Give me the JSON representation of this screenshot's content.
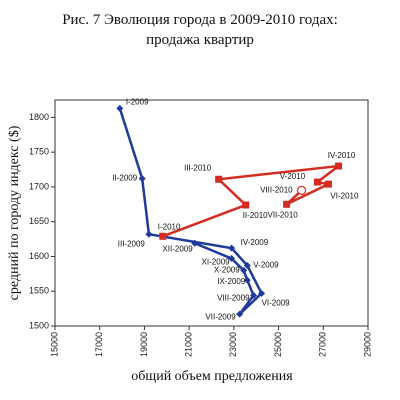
{
  "chart_data": {
    "type": "scatter",
    "title": [
      "Рис. 7 Эволюция города в 2009-2010 годах:",
      "продажа квартир"
    ],
    "x_label": "общий объем предложения",
    "y_label": "средний по городу индекс ($)",
    "xlim": [
      15000,
      29000
    ],
    "xticks": [
      15000,
      17000,
      19000,
      21000,
      23000,
      25000,
      27000,
      29000
    ],
    "ylim": [
      1500,
      1825
    ],
    "yticks": [
      1500,
      1550,
      1600,
      1650,
      1700,
      1750,
      1800
    ],
    "series": [
      {
        "color": "#1f3a9a",
        "labels": [
          "I-2009",
          "II-2009",
          "III-2009",
          "IV-2009",
          "V-2009",
          "VI-2009",
          "VII-2009",
          "VIII-2009",
          "IX-2009",
          "X-2009",
          "XI-2009",
          "XII-2009"
        ],
        "x": [
          17900,
          18900,
          19200,
          22900,
          23600,
          24240,
          23260,
          23880,
          23600,
          23440,
          22900,
          21250
        ],
        "values": [
          1813,
          1712,
          1632,
          1612,
          1587,
          1547,
          1517,
          1544,
          1566,
          1580,
          1597,
          1619
        ]
      },
      {
        "color": "#d42a20",
        "labels": [
          "I-2010",
          "II-2010",
          "III-2010",
          "IV-2010",
          "V-2010",
          "VI-2010",
          "VII-2010",
          "VIII-2010"
        ],
        "x": [
          19820,
          23530,
          22320,
          27680,
          26740,
          27230,
          25360,
          26030
        ],
        "values": [
          1629,
          1674,
          1711,
          1730,
          1707,
          1704,
          1675,
          1695
        ]
      }
    ]
  }
}
